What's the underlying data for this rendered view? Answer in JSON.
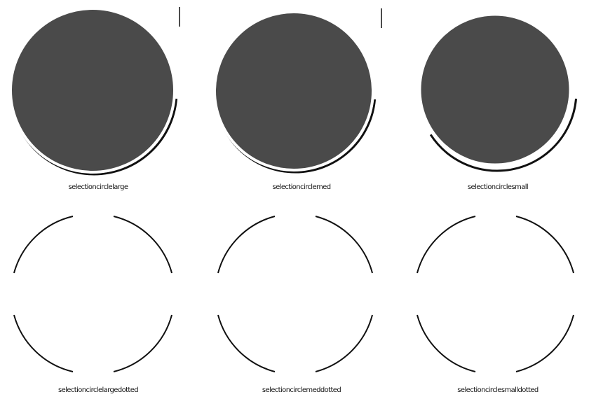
{
  "colors": {
    "fill": "#4a4a4a",
    "ring": "#ffffff",
    "edge": "#111111",
    "background": "#ffffff"
  },
  "items": [
    {
      "label": "selectioncirclelarge",
      "icon": "selection-circle-large"
    },
    {
      "label": "selectioncirclemed",
      "icon": "selection-circle-medium"
    },
    {
      "label": "selectioncirclesmall",
      "icon": "selection-circle-small"
    },
    {
      "label": "selectioncirclelargedotted",
      "icon": "selection-circle-large-dotted"
    },
    {
      "label": "selectioncirclemeddotted",
      "icon": "selection-circle-medium-dotted"
    },
    {
      "label": "selectioncirclesmalldotted",
      "icon": "selection-circle-small-dotted"
    }
  ]
}
